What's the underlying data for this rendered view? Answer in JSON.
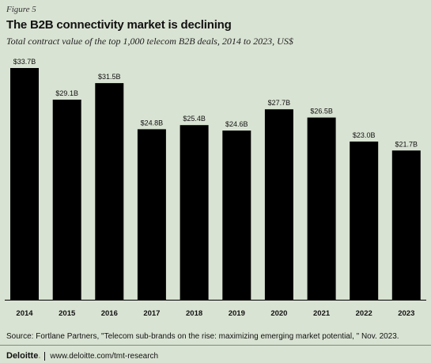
{
  "figure_label": "Figure 5",
  "title": "The B2B connectivity market is declining",
  "subtitle": "Total contract value of the top 1,000 telecom B2B deals, 2014 to 2023, US$",
  "chart_data": {
    "type": "bar",
    "categories": [
      "2014",
      "2015",
      "2016",
      "2017",
      "2018",
      "2019",
      "2020",
      "2021",
      "2022",
      "2023"
    ],
    "values": [
      33.7,
      29.1,
      31.5,
      24.8,
      25.4,
      24.6,
      27.7,
      26.5,
      23.0,
      21.7
    ],
    "data_labels": [
      "$33.7B",
      "$29.1B",
      "$31.5B",
      "$24.8B",
      "$25.4B",
      "$24.6B",
      "$27.7B",
      "$26.5B",
      "$23.0B",
      "$21.7B"
    ],
    "title": "The B2B connectivity market is declining",
    "subtitle": "Total contract value of the top 1,000 telecom B2B deals, 2014 to 2023, US$",
    "xlabel": "",
    "ylabel": "",
    "ylim": [
      0,
      33.7
    ],
    "grid": false,
    "bar_color": "#000000"
  },
  "source": "Source: Fortlane Partners, \"Telecom sub-brands on the rise: maximizing emerging market potential, \" Nov. 2023.",
  "footer": {
    "brand": "Deloitte",
    "brand_dot": ".",
    "url": "www.deloitte.com/tmt-research"
  },
  "colors": {
    "background": "#d9e3d3",
    "bars": "#000000",
    "brand_accent": "#86bc25"
  }
}
